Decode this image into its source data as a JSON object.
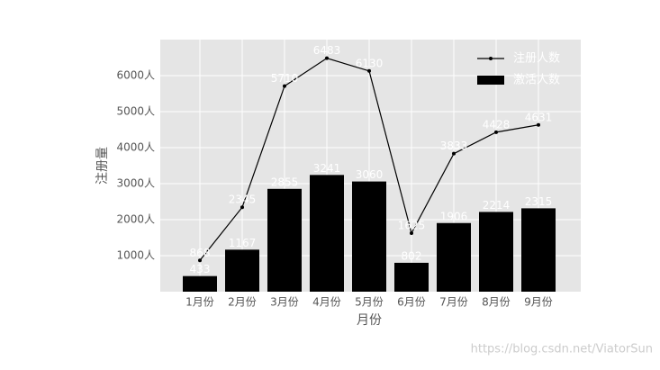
{
  "chart_data": {
    "type": "bar-line",
    "categories": [
      "1月份",
      "2月份",
      "3月份",
      "4月份",
      "5月份",
      "6月份",
      "7月份",
      "8月份",
      "9月份"
    ],
    "series": [
      {
        "name": "注册人数",
        "type": "line",
        "color": "#000000",
        "values": [
          868,
          2345,
          5710,
          6483,
          6130,
          1625,
          3833,
          4428,
          4631
        ]
      },
      {
        "name": "激活人数",
        "type": "bar",
        "color": "#000000",
        "values": [
          433,
          1167,
          2855,
          3241,
          3060,
          802,
          1906,
          2214,
          2315
        ]
      }
    ],
    "xlabel": "月份",
    "ylabel": "注册量",
    "ylim": [
      0,
      7000
    ],
    "yticks": [
      {
        "value": 1000,
        "label": "1000人"
      },
      {
        "value": 2000,
        "label": "2000人"
      },
      {
        "value": 3000,
        "label": "3000人"
      },
      {
        "value": 4000,
        "label": "4000人"
      },
      {
        "value": 5000,
        "label": "5000人"
      },
      {
        "value": 6000,
        "label": "6000人"
      }
    ],
    "grid": true,
    "legend": "upper right",
    "watermark": "https://blog.csdn.net/ViatorSun"
  }
}
